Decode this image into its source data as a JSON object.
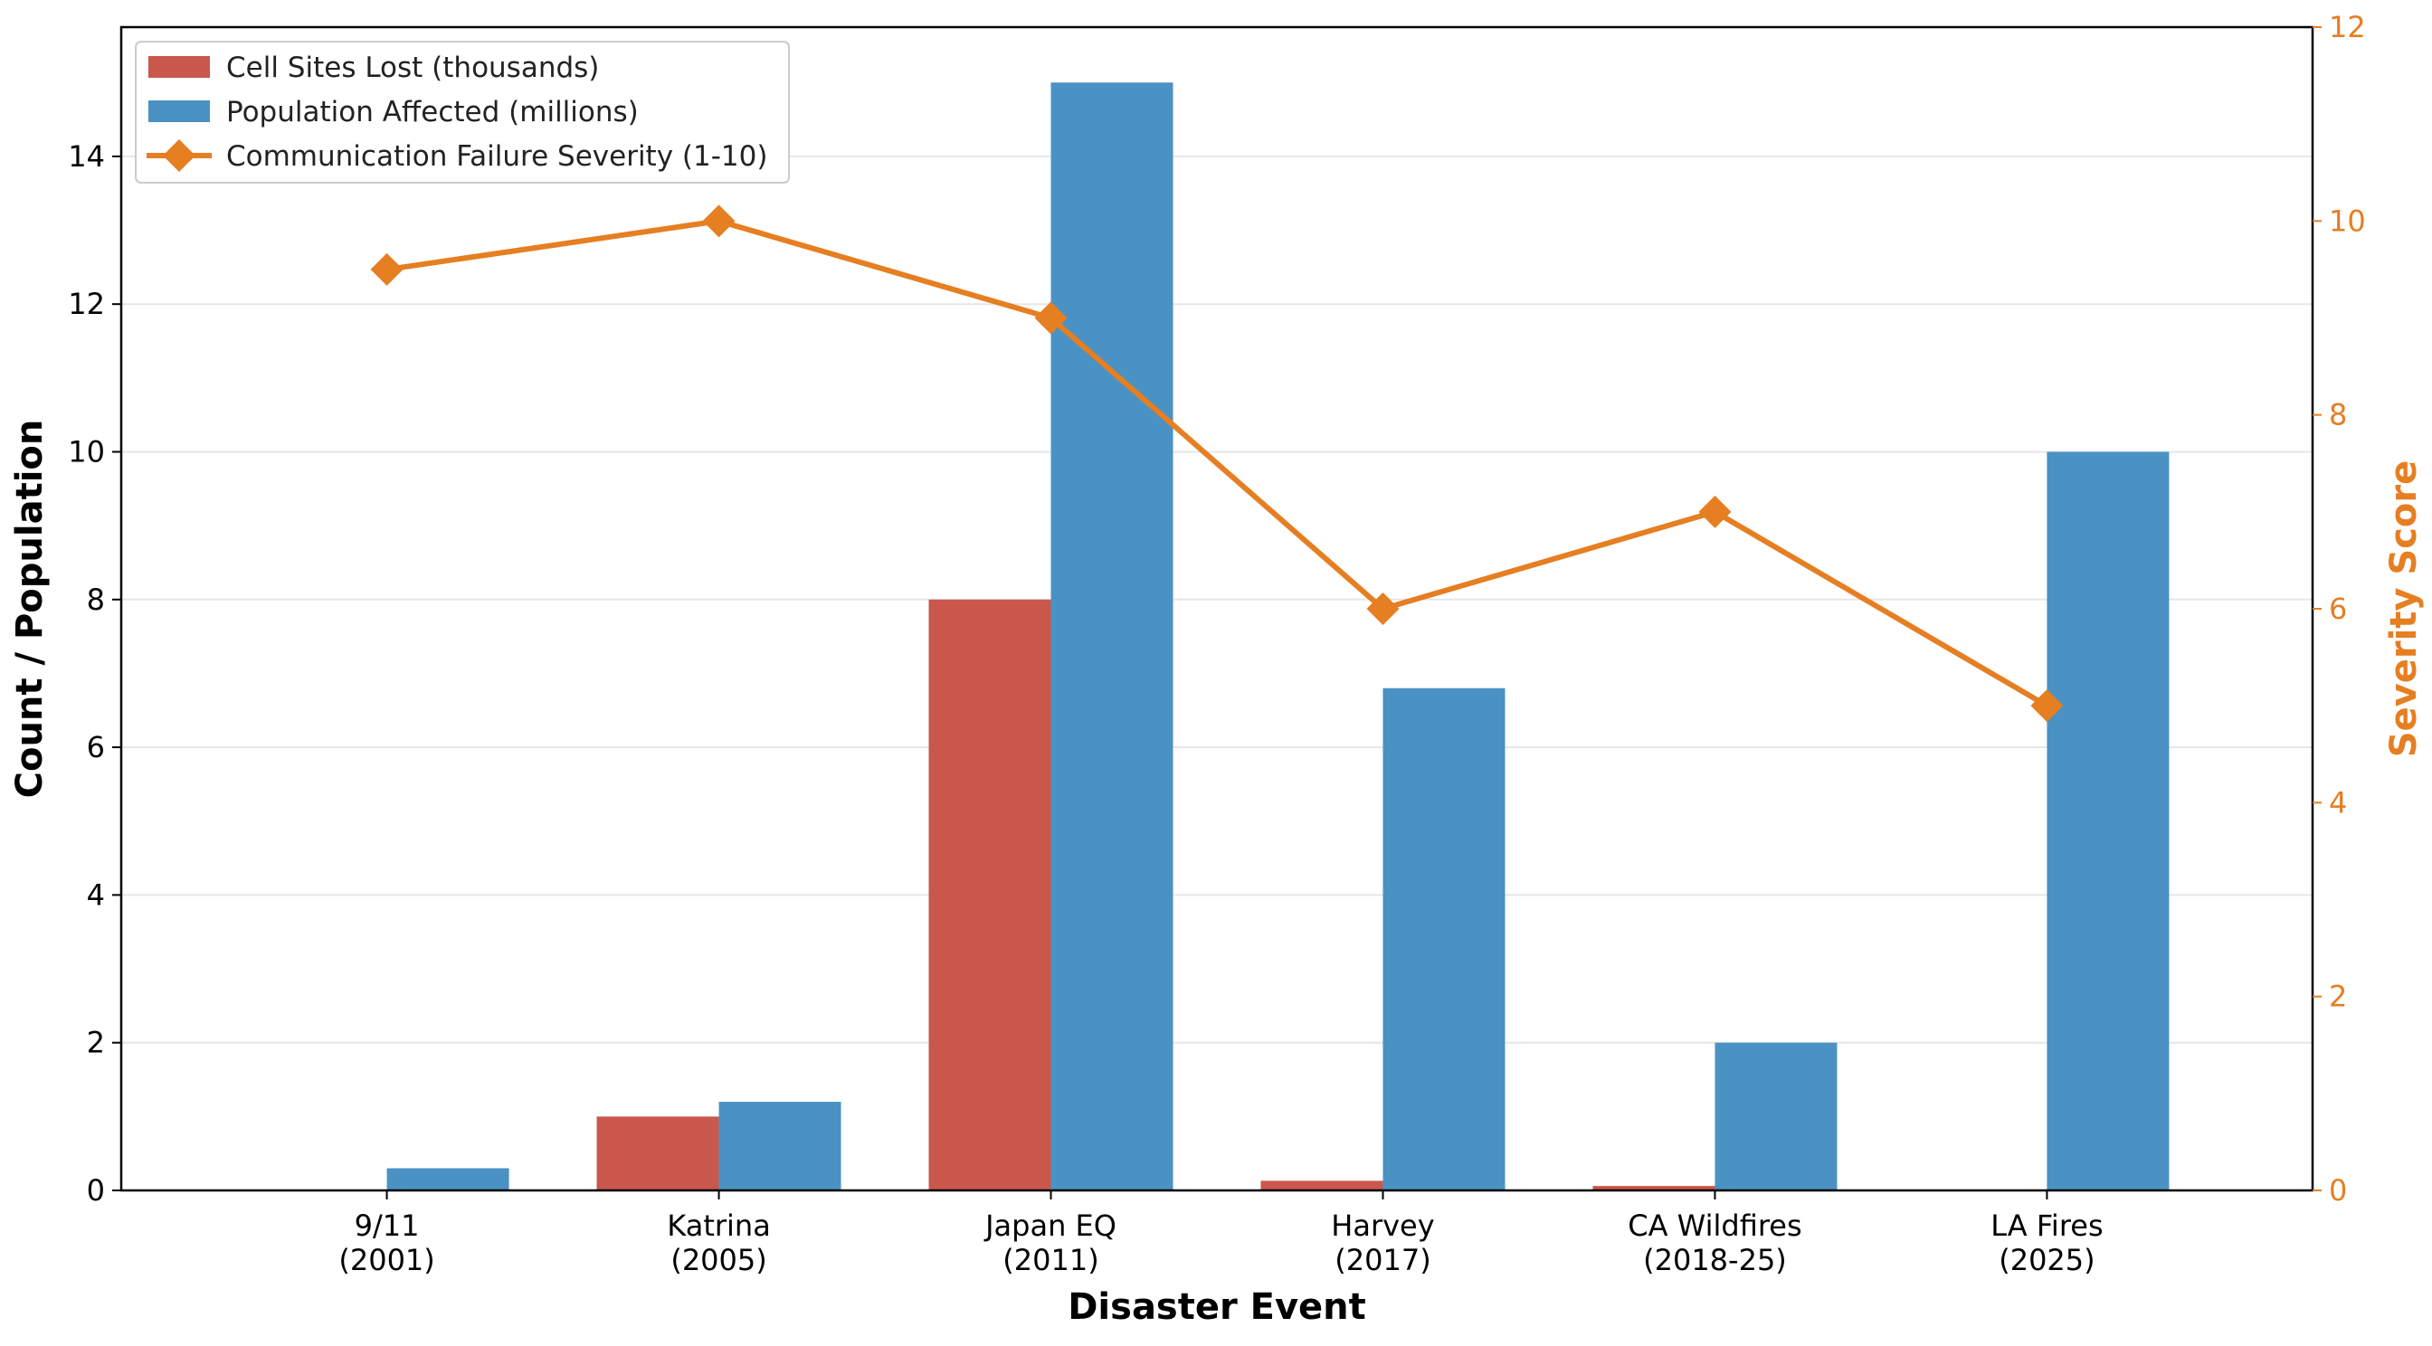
{
  "chart_data": {
    "type": "bar",
    "title": "",
    "xlabel": "Disaster Event",
    "ylabel": "Count / Population",
    "y2label": "Severity Score",
    "categories": [
      [
        "9/11",
        "(2001)"
      ],
      [
        "Katrina",
        "(2005)"
      ],
      [
        "Japan EQ",
        "(2011)"
      ],
      [
        "Harvey",
        "(2017)"
      ],
      [
        "CA Wildfires",
        "(2018-25)"
      ],
      [
        "LA Fires",
        "(2025)"
      ]
    ],
    "ylim": [
      0,
      15.75
    ],
    "y2lim": [
      0,
      12
    ],
    "yticks": [
      0,
      2,
      4,
      6,
      8,
      10,
      12,
      14
    ],
    "y2ticks": [
      0,
      2,
      4,
      6,
      8,
      10,
      12
    ],
    "grid": "horizontal",
    "legend_position": "top-left",
    "series": [
      {
        "name": "Cell Sites Lost (thousands)",
        "type": "bar",
        "axis": "left",
        "color": "#c9574b",
        "values": [
          0,
          1.0,
          8.0,
          0.13,
          0.06,
          0
        ]
      },
      {
        "name": "Population Affected (millions)",
        "type": "bar",
        "axis": "left",
        "color": "#4a92c4",
        "values": [
          0.3,
          1.2,
          15.0,
          6.8,
          2.0,
          10.0
        ]
      },
      {
        "name": "Communication Failure Severity (1-10)",
        "type": "line",
        "axis": "right",
        "color": "#e67e22",
        "marker": "diamond",
        "values": [
          9.5,
          10.0,
          9.0,
          6.0,
          7.0,
          5.0
        ]
      }
    ],
    "axis_color_right": "#e67e22"
  }
}
